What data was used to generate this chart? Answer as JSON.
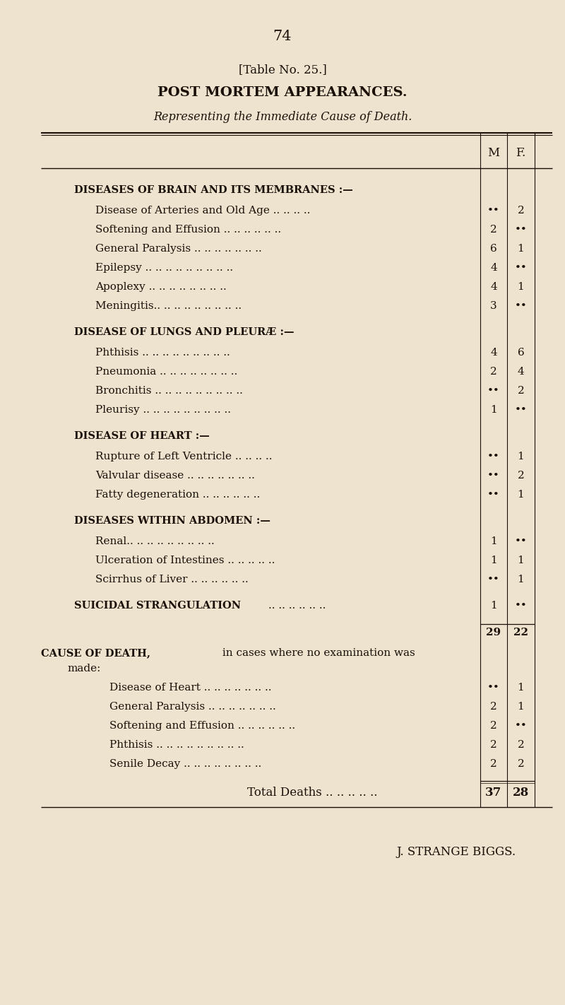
{
  "page_number": "74",
  "table_label": "[Table No. 25.]",
  "title": "POST MORTEM APPEARANCES.",
  "subtitle": "Representing the Immediate Cause of Death.",
  "background_color": "#ede3ce",
  "text_color": "#1a1008",
  "col_M_label": "M",
  "col_F_label": "F.",
  "sections": [
    {
      "heading": "Diseases of Brain and its Membranes :—",
      "rows": [
        {
          "label": "Disease of Arteries and Old Age .. .. .. ..",
          "M": "••",
          "F": "2"
        },
        {
          "label": "Softening and Effusion .. .. .. .. .. ..",
          "M": "2",
          "F": "••"
        },
        {
          "label": "General Paralysis .. .. .. .. .. .. ..",
          "M": "6",
          "F": "1"
        },
        {
          "label": "Epilepsy .. .. .. .. .. .. .. .. ..",
          "M": "4",
          "F": "••"
        },
        {
          "label": "Apoplexy .. .. .. .. .. .. .. ..",
          "M": "4",
          "F": "1"
        },
        {
          "label": "Meningitis.. .. .. .. .. .. .. .. ..",
          "M": "3",
          "F": "••"
        }
      ]
    },
    {
      "heading": "Disease of Lungs and Pleuræ :—",
      "rows": [
        {
          "label": "Phthisis .. .. .. .. .. .. .. .. ..",
          "M": "4",
          "F": "6"
        },
        {
          "label": "Pneumonia .. .. .. .. .. .. .. ..",
          "M": "2",
          "F": "4"
        },
        {
          "label": "Bronchitis .. .. .. .. .. .. .. .. ..",
          "M": "••",
          "F": "2"
        },
        {
          "label": "Pleurisy .. .. .. .. .. .. .. .. ..",
          "M": "1",
          "F": "••"
        }
      ]
    },
    {
      "heading": "Disease of Heart :—",
      "rows": [
        {
          "label": "Rupture of Left Ventricle .. .. .. ..",
          "M": "••",
          "F": "1"
        },
        {
          "label": "Valvular disease .. .. .. .. .. .. ..",
          "M": "••",
          "F": "2"
        },
        {
          "label": "Fatty degeneration .. .. .. .. .. ..",
          "M": "••",
          "F": "1"
        }
      ]
    },
    {
      "heading": "Diseases within Abdomen :—",
      "rows": [
        {
          "label": "Renal.. .. .. .. .. .. .. .. ..",
          "M": "1",
          "F": "••"
        },
        {
          "label": "Ulceration of Intestines .. .. .. .. ..",
          "M": "1",
          "F": "1"
        },
        {
          "label": "Scirrhus of Liver .. .. .. .. .. ..",
          "M": "••",
          "F": "1"
        }
      ]
    }
  ],
  "standalone": {
    "label": "Suicidal Strangulation .. .. .. .. .. ..",
    "M": "1",
    "F": "••"
  },
  "subtotal": {
    "M": "29",
    "F": "22"
  },
  "cause_heading_line1": "Cause of Death, in cases where no examination was",
  "cause_heading_line2": "made:",
  "cause_rows": [
    {
      "label": "Disease of Heart .. .. .. .. .. .. ..",
      "M": "••",
      "F": "1"
    },
    {
      "label": "General Paralysis .. .. .. .. .. .. ..",
      "M": "2",
      "F": "1"
    },
    {
      "label": "Softening and Effusion .. .. .. .. .. ..",
      "M": "2",
      "F": "••"
    },
    {
      "label": "Phthisis .. .. .. .. .. .. .. .. ..",
      "M": "2",
      "F": "2"
    },
    {
      "label": "Senile Decay .. .. .. .. .. .. .. ..",
      "M": "2",
      "F": "2"
    }
  ],
  "total_label": "Total Deaths .. .. .. .. ..",
  "total_M": "37",
  "total_F": "28",
  "footer": "J. STRANGE BIGGS."
}
